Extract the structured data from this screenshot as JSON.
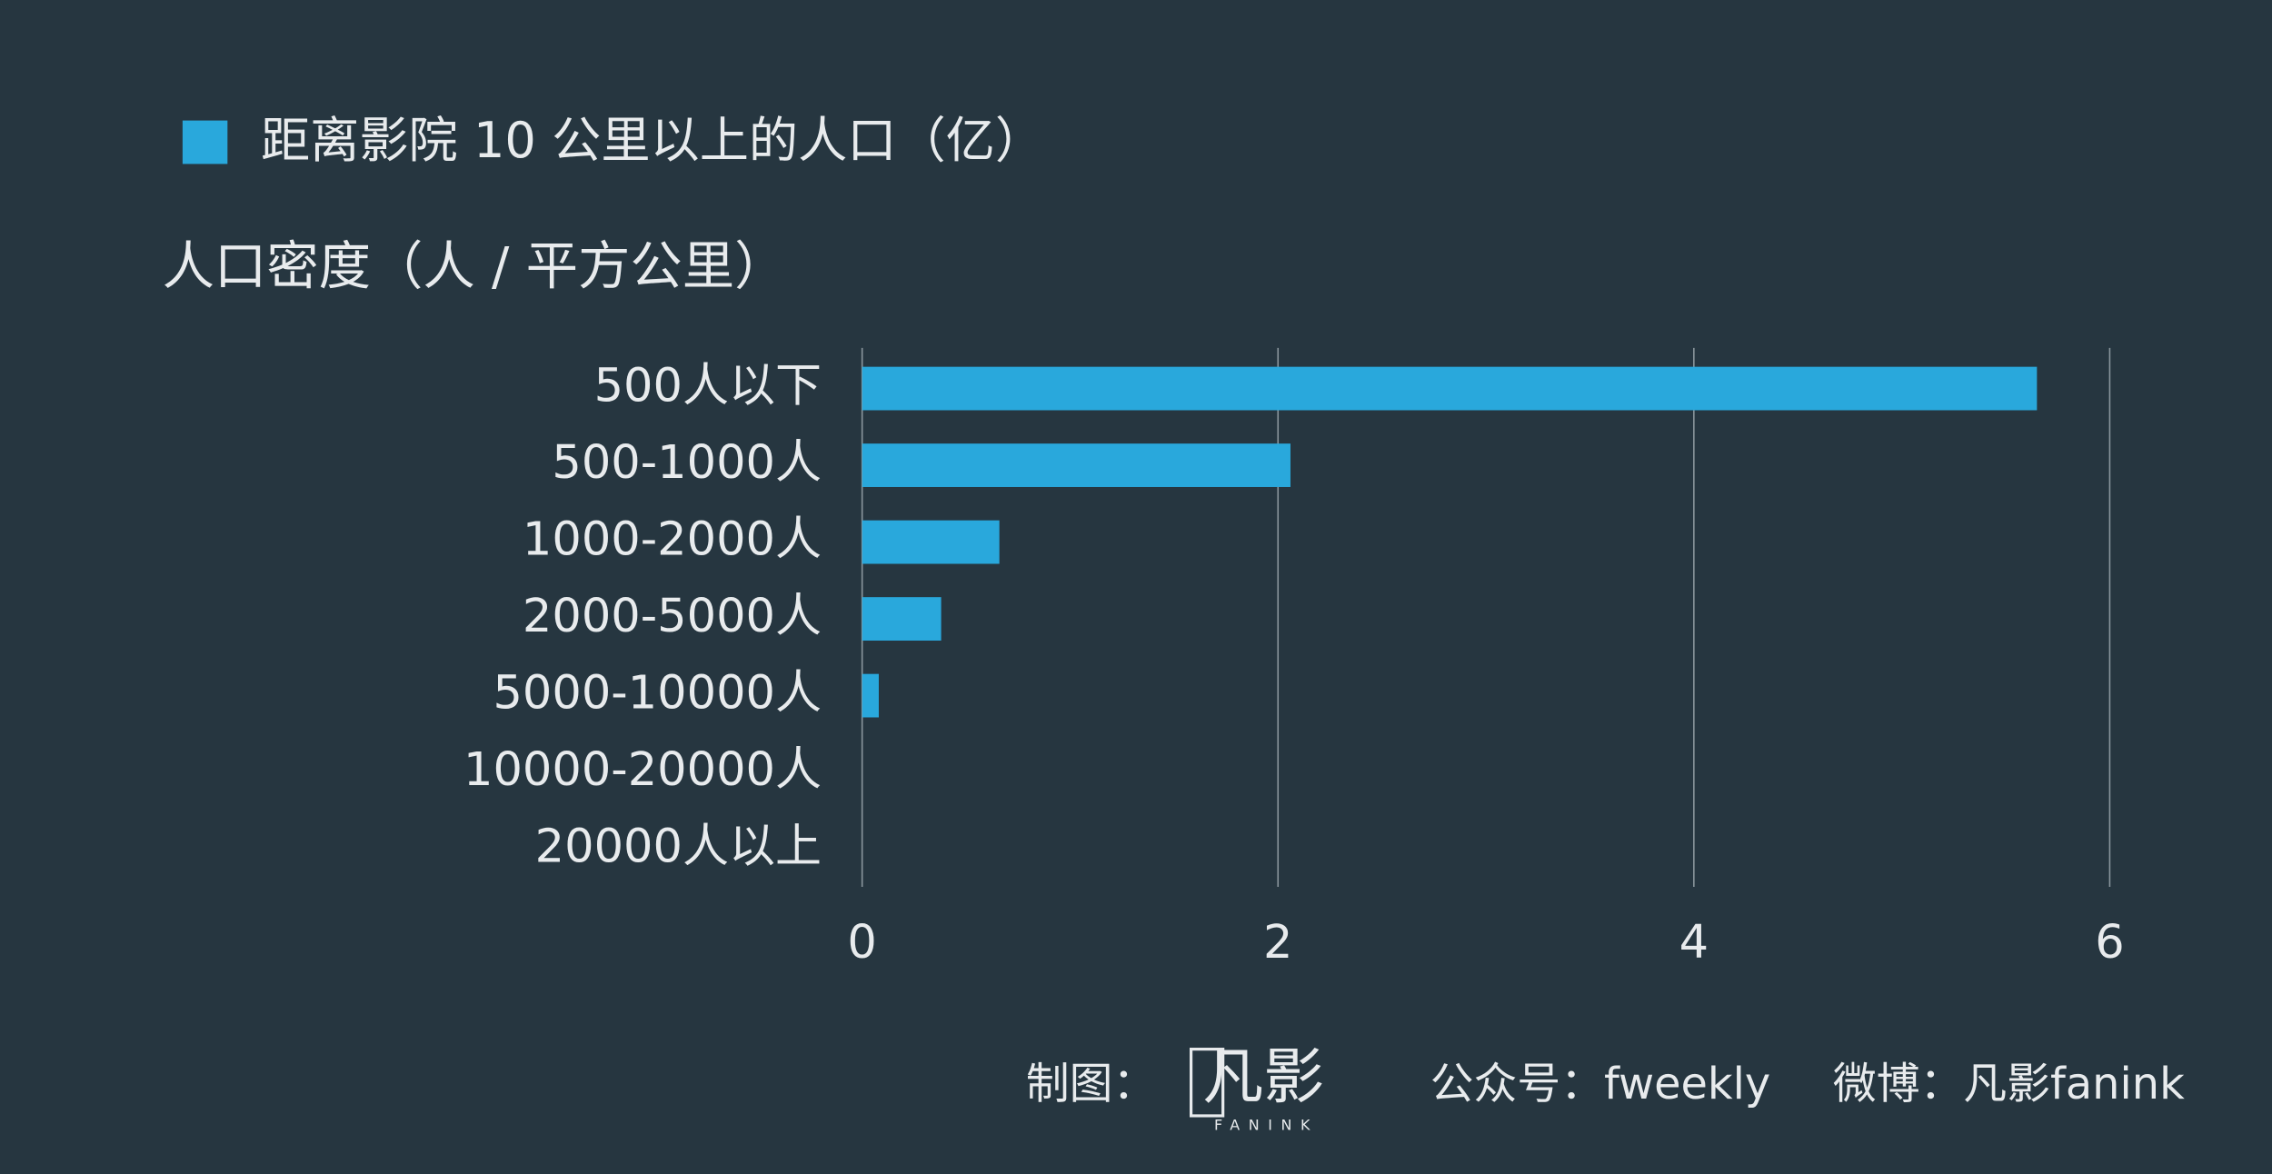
{
  "chart_data": {
    "type": "bar",
    "orientation": "horizontal",
    "y_axis_title": "人口密度（人 / 平方公里）",
    "categories": [
      "500人以下",
      "500-1000人",
      "1000-2000人",
      "2000-5000人",
      "5000-10000人",
      "10000-20000人",
      "20000人以上"
    ],
    "series": [
      {
        "name": "距离影院 10 公里以上的人口（亿）",
        "color": "#29a8dc",
        "values": [
          5.65,
          2.06,
          0.66,
          0.38,
          0.08,
          0,
          0
        ]
      }
    ],
    "xlim": [
      0,
      6
    ],
    "xticks": [
      0,
      2,
      4,
      6
    ],
    "grid": true
  },
  "footer": {
    "credit": "制图：",
    "logo": "凡影",
    "logo_sub": "FANINK",
    "wechat": "公众号：fweekly",
    "weibo": "微博：凡影fanink"
  }
}
